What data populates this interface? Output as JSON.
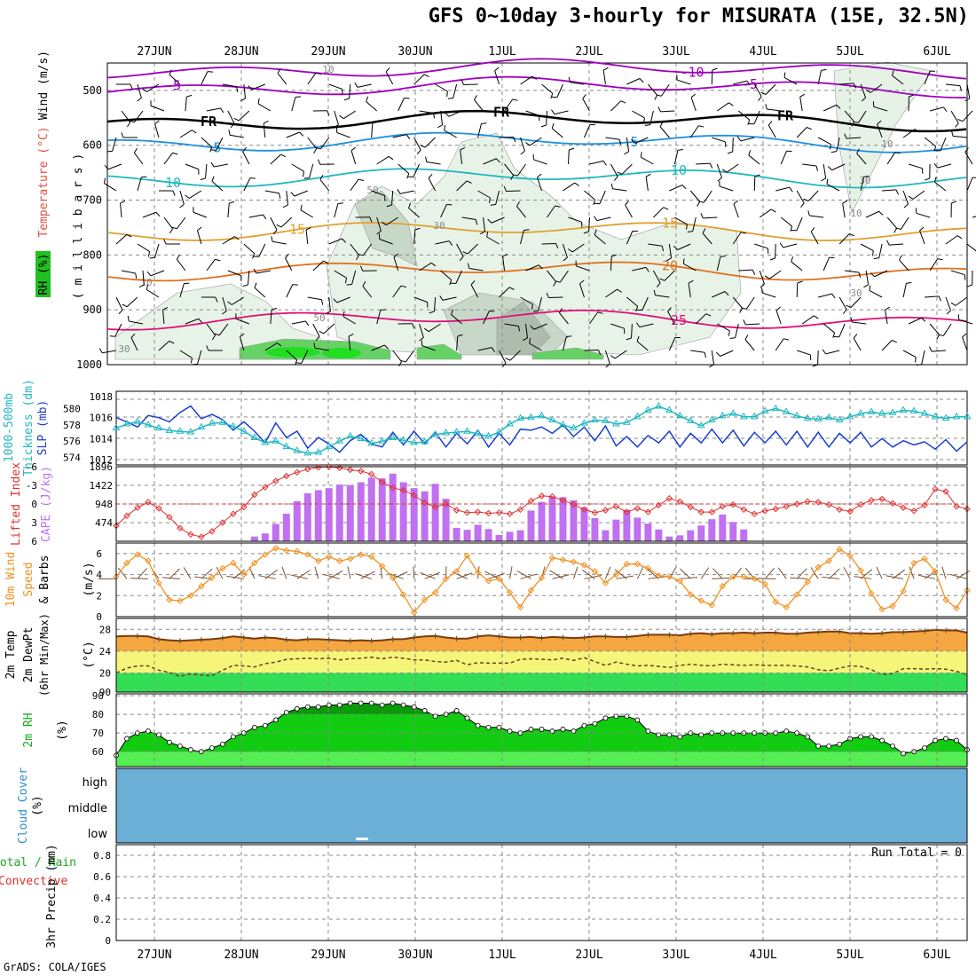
{
  "title": "GFS 0~10day 3-hourly for MISURATA (15E, 32.5N)",
  "credit": "GrADS: COLA/IGES",
  "date_labels": [
    "27JUN",
    "28JUN",
    "29JUN",
    "30JUN",
    "1JUL",
    "2JUL",
    "3JUL",
    "4JUL",
    "5JUL",
    "6JUL"
  ],
  "colors": {
    "rh": "#1fc01f",
    "temp": "#e05040",
    "wind": "#000000",
    "slp": "#1a3fd0",
    "thickness": "#20b8c0",
    "li": "#e03030",
    "cape": "#c070f0",
    "wind10": "#f09020",
    "rain": "#20c020",
    "convective": "#e03030",
    "cloud": "#6baed6"
  },
  "chart_data": [
    {
      "type": "contour",
      "name": "upper",
      "ylabel_parts": [
        "RH (%)",
        "Temperature (°C)",
        "Wind (m/s)"
      ],
      "ylabel_right": "( m i l l i b a r s )",
      "y_ticks": [
        500,
        600,
        700,
        800,
        900,
        1000
      ],
      "ylim": [
        450,
        1000
      ],
      "grid": true,
      "isotherms": [
        {
          "label": "-10",
          "color": "#a000c0"
        },
        {
          "label": "-5",
          "color": "#a000c0"
        },
        {
          "label": "FR",
          "color": "#000000"
        },
        {
          "label": "5",
          "color": "#1e90e0"
        },
        {
          "label": "10",
          "color": "#20b8c0"
        },
        {
          "label": "15",
          "color": "#e0a030"
        },
        {
          "label": "20",
          "color": "#e07020"
        },
        {
          "label": "25",
          "color": "#e0107a"
        }
      ],
      "rh_labels": [
        "10",
        "30",
        "50"
      ]
    },
    {
      "type": "line",
      "name": "thickness_slp",
      "ylabel_left": "1000-500mb",
      "ylabel_left2": "Thickness (dm)",
      "ylabel_right": "SLP (mb)",
      "thickness_ticks": [
        "580",
        "578",
        "576",
        "574"
      ],
      "slp_ticks": [
        "1018",
        "1016",
        "1014",
        "1012"
      ],
      "thickness_ylim": [
        573.5,
        581.5
      ],
      "slp_ylim": [
        1012,
        1018
      ],
      "series": [
        {
          "name": "SLP (mb)",
          "values": [
            1016.0,
            1015.6,
            1015.1,
            1016.2,
            1016.0,
            1015.6,
            1016.5,
            1017.1,
            1015.9,
            1016.3,
            1015.8,
            1014.8,
            1015.6,
            1014.7,
            1013.6,
            1015.5,
            1014.1,
            1014.7,
            1013.1,
            1014.1,
            1013.5,
            1012.7,
            1013.8,
            1014.4,
            1013.5,
            1013.2,
            1014.6,
            1013.4,
            1014.7,
            1013.5,
            1014.6,
            1013.2,
            1014.5,
            1013.5,
            1014.8,
            1013.2,
            1014.5,
            1013.4,
            1014.9,
            1014.8,
            1015.1,
            1014.5,
            1015.3,
            1014.2,
            1015.1,
            1013.8,
            1015.2,
            1013.3,
            1014.2,
            1013.2,
            1014.3,
            1013.6,
            1014.7,
            1013.2,
            1014.5,
            1013.6,
            1014.9,
            1013.6,
            1014.8,
            1013.3,
            1014.6,
            1013.6,
            1014.7,
            1013.4,
            1014.7,
            1013.2,
            1014.6,
            1013.2,
            1014.5,
            1013.6,
            1014.6,
            1013.2,
            1014.0,
            1013.2,
            1013.8,
            1013.4,
            1013.7,
            1013.0,
            1013.9,
            1012.8,
            1013.7
          ]
        },
        {
          "name": "Thickness (dm)",
          "values": [
            577.6,
            578.1,
            578.4,
            578.0,
            577.6,
            577.3,
            577.2,
            577.1,
            577.7,
            578.2,
            578.3,
            577.8,
            577.2,
            576.4,
            575.8,
            576.0,
            575.3,
            574.8,
            574.5,
            574.6,
            575.3,
            576.0,
            576.6,
            576.3,
            575.7,
            576.0,
            576.4,
            576.1,
            575.8,
            575.9,
            576.8,
            577.0,
            577.1,
            577.2,
            576.9,
            576.6,
            577.1,
            578.1,
            578.8,
            578.9,
            579.1,
            578.6,
            578.0,
            577.6,
            578.2,
            578.6,
            578.5,
            578.1,
            578.3,
            579.0,
            579.8,
            580.3,
            579.8,
            579.1,
            578.5,
            577.9,
            578.6,
            579.1,
            579.4,
            579.0,
            579.0,
            579.7,
            580.0,
            579.6,
            579.1,
            578.8,
            578.7,
            578.9,
            578.6,
            579.0,
            579.4,
            579.6,
            579.4,
            579.5,
            579.8,
            579.7,
            579.4,
            579.0,
            578.8,
            579.0,
            579.0
          ]
        }
      ]
    },
    {
      "type": "bar",
      "name": "li_cape",
      "ylabel_left": "Lifted Index",
      "ylabel_right": "CAPE (J/kg)",
      "li_ticks": [
        "-6",
        "-3",
        "0",
        "3",
        "6"
      ],
      "cape_ticks": [
        "1896",
        "1422",
        "948",
        "474"
      ],
      "li_ylim": [
        -6,
        6
      ],
      "cape_ylim": [
        0,
        1896
      ],
      "series": [
        {
          "name": "Lifted Index",
          "values": [
            3.5,
            1.9,
            0.6,
            -0.3,
            0.7,
            2.1,
            3.9,
            4.9,
            5.3,
            4.4,
            3.0,
            1.6,
            0.5,
            -1.5,
            -2.7,
            -3.7,
            -4.5,
            -5.1,
            -5.6,
            -5.9,
            -6.0,
            -5.8,
            -5.5,
            -5.3,
            -4.8,
            -3.5,
            -2.6,
            -2.2,
            -1.4,
            -0.2,
            0.5,
            0.0,
            1.0,
            1.4,
            1.3,
            1.5,
            1.4,
            1.6,
            0.9,
            -0.5,
            -1.3,
            -1.2,
            -0.6,
            0.1,
            0.9,
            1.4,
            1.0,
            0.4,
            1.3,
            0.7,
            1.3,
            0.2,
            -0.9,
            -0.4,
            0.5,
            1.3,
            1.3,
            0.4,
            0.1,
            0.9,
            1.6,
            1.1,
            0.8,
            0.4,
            0.0,
            -0.4,
            -0.3,
            0.1,
            0.9,
            1.2,
            0.1,
            -0.6,
            -0.8,
            -0.1,
            0.6,
            1.1,
            0.2,
            -2.4,
            -2.0,
            0.4,
            0.8
          ]
        },
        {
          "name": "CAPE (J/kg)",
          "values": [
            0,
            0,
            0,
            0,
            0,
            0,
            0,
            0,
            0,
            0,
            0,
            0,
            0,
            120,
            200,
            440,
            700,
            1020,
            1220,
            1300,
            1350,
            1440,
            1430,
            1500,
            1620,
            1600,
            1720,
            1500,
            1350,
            1270,
            1460,
            1080,
            340,
            290,
            420,
            310,
            160,
            240,
            280,
            780,
            1000,
            1130,
            1120,
            1040,
            860,
            590,
            280,
            550,
            800,
            600,
            450,
            300,
            120,
            150,
            280,
            400,
            560,
            680,
            490,
            300,
            0,
            0,
            0,
            0,
            0,
            0,
            0,
            0,
            0,
            0,
            0,
            0,
            0,
            0,
            0,
            0,
            0,
            0,
            0,
            0,
            0
          ]
        }
      ]
    },
    {
      "type": "line",
      "name": "wind10",
      "ylabel_left": "10m Wind",
      "ylabel_left2": "Speed",
      "ylabel_left3": "& Barbs",
      "ylabel_right": "(m/s)",
      "y_ticks": [
        "6",
        "4",
        "2",
        "0"
      ],
      "ylim": [
        0,
        7
      ],
      "series": [
        {
          "name": "10m Wind Speed",
          "values": [
            3.8,
            5.1,
            5.9,
            5.3,
            3.2,
            1.6,
            1.5,
            2.0,
            2.9,
            3.7,
            4.6,
            5.1,
            4.0,
            5.1,
            5.9,
            6.5,
            6.3,
            6.2,
            5.9,
            5.3,
            5.7,
            5.3,
            5.5,
            5.9,
            5.7,
            4.8,
            3.7,
            2.1,
            0.4,
            1.6,
            2.3,
            3.6,
            4.3,
            5.8,
            4.2,
            3.4,
            3.6,
            2.3,
            0.9,
            2.5,
            3.7,
            5.6,
            5.4,
            5.2,
            4.9,
            4.3,
            3.2,
            4.0,
            5.0,
            5.0,
            4.6,
            3.9,
            3.8,
            3.4,
            2.1,
            1.5,
            1.1,
            2.9,
            3.8,
            3.8,
            3.6,
            3.1,
            1.4,
            0.9,
            2.1,
            3.3,
            4.7,
            5.3,
            6.4,
            5.8,
            4.4,
            2.2,
            0.7,
            1.0,
            2.4,
            5.1,
            5.5,
            4.3,
            1.6,
            0.8,
            2.5
          ]
        }
      ]
    },
    {
      "type": "area",
      "name": "temp2m",
      "ylabel_left": "2m Temp",
      "ylabel_left2": "2m DewPt",
      "ylabel_left3": "(6hr Min/Max)",
      "ylabel_right": "(°C)",
      "y_ticks": [
        "28",
        "24",
        "20",
        "90"
      ],
      "ylim": [
        16.5,
        30
      ],
      "series": [
        {
          "name": "2m Temp",
          "values": [
            26.7,
            26.8,
            26.8,
            26.7,
            26.2,
            26.0,
            25.9,
            26.0,
            26.1,
            26.2,
            26.4,
            26.7,
            26.5,
            26.3,
            26.5,
            26.4,
            26.1,
            26.0,
            26.2,
            26.2,
            26.1,
            26.0,
            25.9,
            26.0,
            25.9,
            26.0,
            26.2,
            26.2,
            26.5,
            26.7,
            26.8,
            26.5,
            26.3,
            26.3,
            26.7,
            26.9,
            26.7,
            26.5,
            26.5,
            26.6,
            26.4,
            26.6,
            26.5,
            26.4,
            26.5,
            26.7,
            26.7,
            26.6,
            26.6,
            26.8,
            27.0,
            27.0,
            27.0,
            26.9,
            27.2,
            27.3,
            27.1,
            27.3,
            27.3,
            27.4,
            27.3,
            27.4,
            27.4,
            27.2,
            27.2,
            27.4,
            27.5,
            27.6,
            27.6,
            27.3,
            27.3,
            27.2,
            27.3,
            27.5,
            27.5,
            27.6,
            27.7,
            27.9,
            27.8,
            27.8,
            27.4
          ]
        },
        {
          "name": "2m DewPt",
          "values": [
            20.0,
            20.9,
            21.3,
            21.3,
            20.5,
            20.1,
            19.4,
            19.8,
            19.6,
            19.5,
            20.5,
            21.4,
            21.3,
            21.1,
            21.7,
            22.0,
            22.5,
            22.6,
            22.7,
            22.6,
            22.7,
            22.4,
            22.6,
            22.7,
            22.9,
            22.6,
            22.9,
            22.7,
            22.4,
            22.4,
            22.1,
            22.0,
            22.3,
            21.5,
            21.9,
            21.8,
            21.8,
            21.8,
            22.5,
            22.6,
            22.5,
            22.4,
            22.7,
            22.3,
            22.8,
            22.1,
            21.4,
            22.0,
            21.6,
            21.3,
            21.4,
            21.2,
            21.0,
            21.4,
            21.6,
            21.4,
            21.3,
            21.6,
            21.5,
            21.4,
            21.5,
            21.4,
            21.4,
            21.4,
            21.3,
            21.1,
            20.6,
            20.4,
            20.9,
            21.3,
            21.2,
            20.6,
            19.7,
            19.9,
            20.8,
            20.8,
            20.7,
            20.8,
            20.7,
            20.3,
            19.7
          ]
        }
      ]
    },
    {
      "type": "area",
      "name": "rh2m",
      "ylabel_left": "2m RH",
      "ylabel_right": "(%)",
      "y_ticks": [
        "90",
        "80",
        "70",
        "60"
      ],
      "ylim": [
        52,
        91
      ],
      "series": [
        {
          "name": "2m RH",
          "values": [
            58,
            67,
            70,
            71,
            69,
            65,
            63,
            61,
            60,
            62,
            64,
            68,
            70,
            73,
            74,
            77,
            81,
            83,
            84,
            84,
            85,
            85,
            86,
            86,
            86,
            85,
            86,
            85,
            84,
            82,
            79,
            80,
            82,
            78,
            74,
            73,
            73,
            71,
            70,
            72,
            72,
            71,
            72,
            71,
            74,
            75,
            78,
            79,
            79,
            77,
            71,
            69,
            69,
            68,
            70,
            69,
            70,
            70,
            70,
            70,
            70,
            70,
            70,
            71,
            70,
            68,
            63,
            63,
            64,
            67,
            68,
            68,
            66,
            63,
            59,
            60,
            62,
            66,
            67,
            66,
            61
          ]
        }
      ]
    },
    {
      "type": "heatmap",
      "name": "cloud_cover",
      "ylabel_left": "Cloud Cover",
      "ylabel_right": "(%)",
      "levels": [
        "high",
        "middle",
        "low"
      ]
    },
    {
      "type": "bar",
      "name": "precip",
      "ylabel_left_total": "Total / Rain",
      "ylabel_left_conv": "Convective",
      "ylabel_right": "3hr Precip (mm)",
      "y_ticks": [
        "0.8",
        "0.6",
        "0.4",
        "0.2",
        "0"
      ],
      "ylim": [
        0,
        0.9
      ],
      "run_total": "Run Total = 0",
      "series": [
        {
          "name": "Total / Rain",
          "values": [
            0,
            0,
            0,
            0,
            0,
            0,
            0,
            0,
            0,
            0,
            0,
            0,
            0,
            0,
            0,
            0,
            0,
            0,
            0,
            0,
            0,
            0,
            0,
            0,
            0,
            0,
            0,
            0,
            0,
            0,
            0,
            0,
            0,
            0,
            0,
            0,
            0,
            0,
            0,
            0,
            0,
            0,
            0,
            0,
            0,
            0,
            0,
            0,
            0,
            0,
            0,
            0,
            0,
            0,
            0,
            0,
            0,
            0,
            0,
            0,
            0,
            0,
            0,
            0,
            0,
            0,
            0,
            0,
            0,
            0,
            0,
            0,
            0,
            0,
            0,
            0,
            0,
            0,
            0,
            0,
            0
          ]
        }
      ]
    }
  ]
}
